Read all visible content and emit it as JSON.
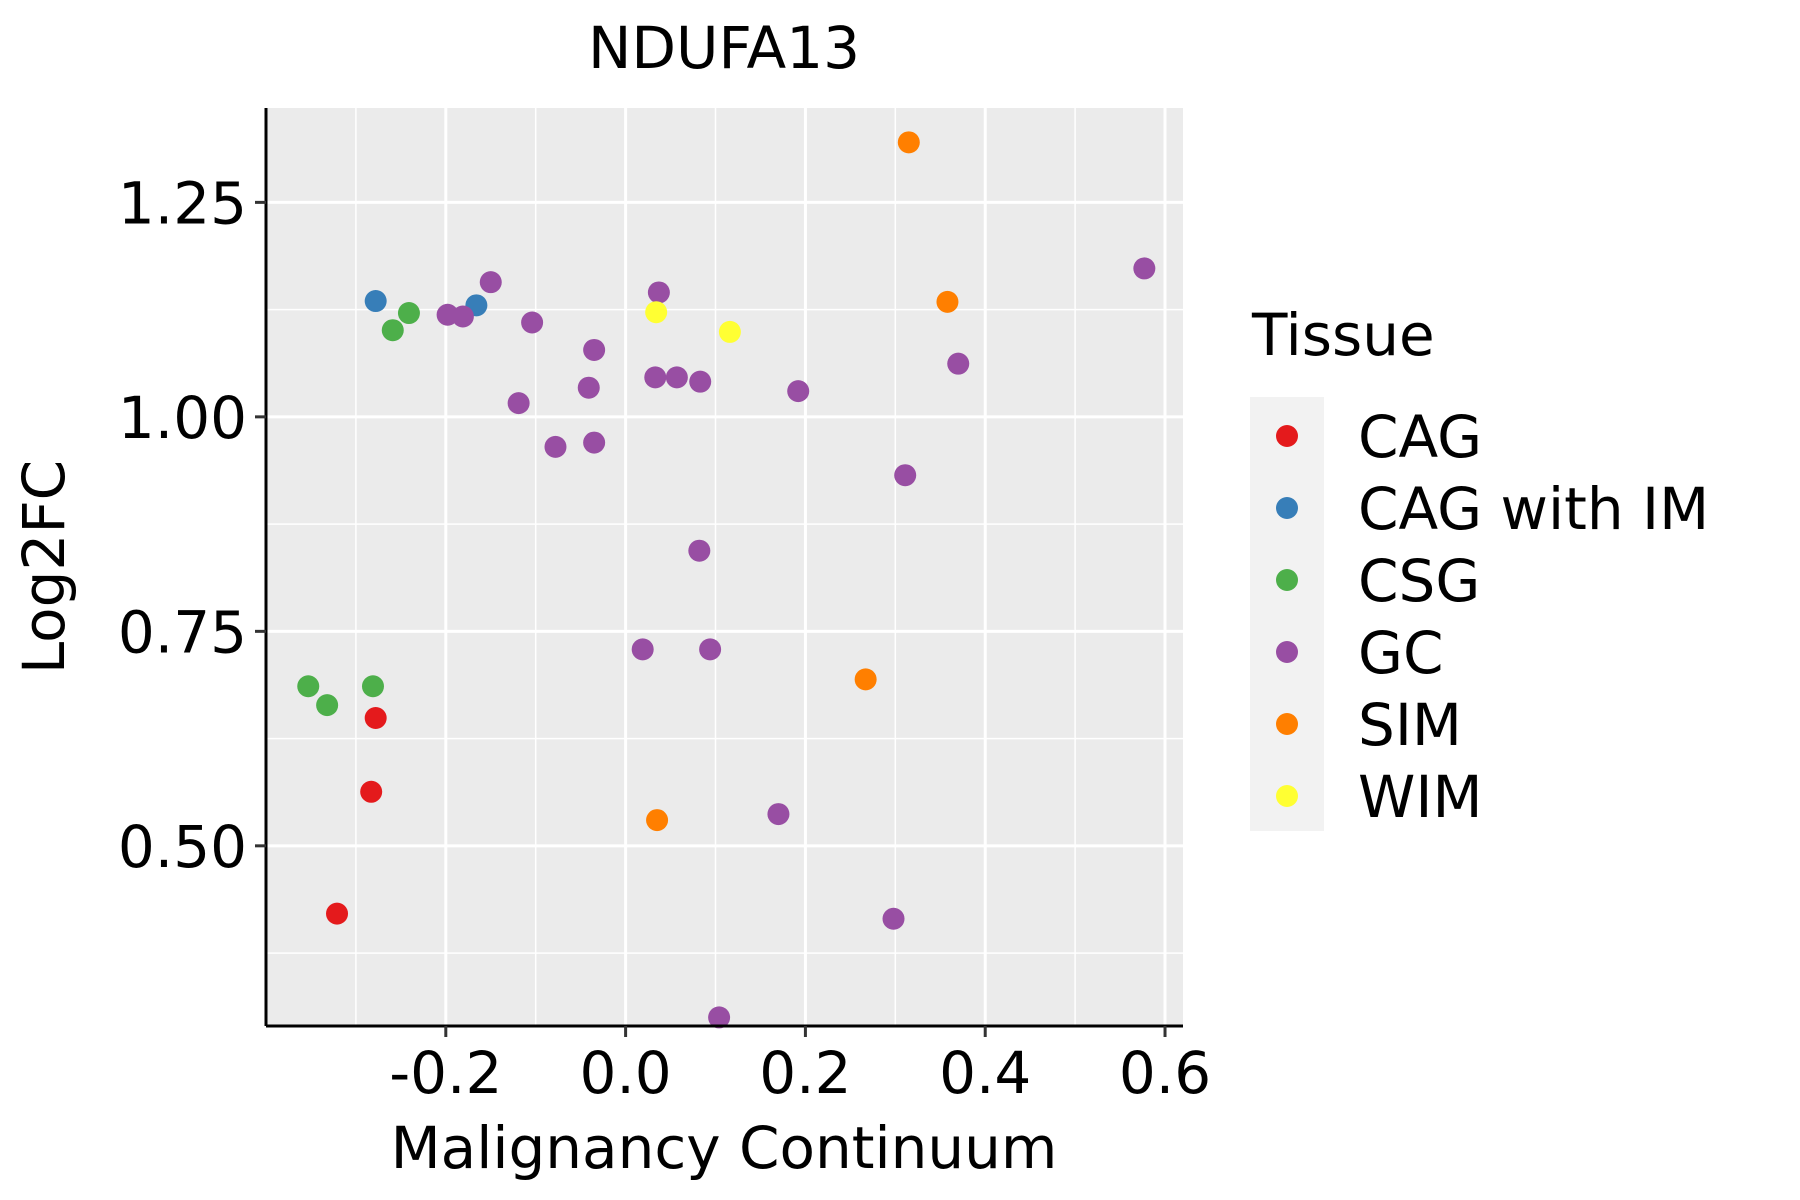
{
  "chart_data": {
    "type": "scatter",
    "title": "NDUFA13",
    "xlabel": "Malignancy Continuum",
    "ylabel": "Log2FC",
    "xlim": [
      -0.4,
      0.62
    ],
    "ylim": [
      0.29,
      1.36
    ],
    "x_ticks": [
      -0.2,
      0.0,
      0.2,
      0.4,
      0.6
    ],
    "x_tick_labels": [
      "-0.2",
      "0.0",
      "0.2",
      "0.4",
      "0.6"
    ],
    "y_ticks": [
      0.5,
      0.75,
      1.0,
      1.25
    ],
    "y_tick_labels": [
      "0.50",
      "0.75",
      "1.00",
      "1.25"
    ],
    "grid": true,
    "legend": {
      "title": "Tissue",
      "position": "right",
      "entries": [
        "CAG",
        "CAG with IM",
        "CSG",
        "GC",
        "SIM",
        "WIM"
      ]
    },
    "colors": {
      "CAG": "#E41A1C",
      "CAG with IM": "#377EB8",
      "CSG": "#4DAF4A",
      "GC": "#984EA3",
      "SIM": "#FF7F00",
      "WIM": "#FFFF33"
    },
    "series": [
      {
        "name": "CAG",
        "points": [
          [
            -0.278,
            0.649
          ],
          [
            -0.283,
            0.563
          ],
          [
            -0.321,
            0.421
          ]
        ]
      },
      {
        "name": "CAG with IM",
        "points": [
          [
            -0.278,
            1.135
          ],
          [
            -0.166,
            1.13
          ]
        ]
      },
      {
        "name": "CSG",
        "points": [
          [
            -0.241,
            1.121
          ],
          [
            -0.259,
            1.101
          ],
          [
            -0.353,
            0.686
          ],
          [
            -0.332,
            0.664
          ],
          [
            -0.281,
            0.686
          ]
        ]
      },
      {
        "name": "GC",
        "points": [
          [
            -0.15,
            1.157
          ],
          [
            -0.198,
            1.119
          ],
          [
            -0.181,
            1.117
          ],
          [
            -0.104,
            1.11
          ],
          [
            -0.119,
            1.016
          ],
          [
            -0.078,
            0.965
          ],
          [
            -0.035,
            1.078
          ],
          [
            -0.041,
            1.034
          ],
          [
            -0.035,
            0.97
          ],
          [
            0.037,
            1.145
          ],
          [
            0.033,
            1.046
          ],
          [
            0.057,
            1.046
          ],
          [
            0.083,
            1.041
          ],
          [
            0.192,
            1.03
          ],
          [
            0.082,
            0.844
          ],
          [
            0.019,
            0.729
          ],
          [
            0.094,
            0.729
          ],
          [
            0.17,
            0.537
          ],
          [
            0.104,
            0.3
          ],
          [
            0.298,
            0.415
          ],
          [
            0.311,
            0.932
          ],
          [
            0.37,
            1.062
          ],
          [
            0.577,
            1.173
          ]
        ]
      },
      {
        "name": "SIM",
        "points": [
          [
            0.315,
            1.32
          ],
          [
            0.358,
            1.134
          ],
          [
            0.267,
            0.694
          ],
          [
            0.035,
            0.53
          ]
        ]
      },
      {
        "name": "WIM",
        "points": [
          [
            0.034,
            1.122
          ],
          [
            0.116,
            1.099
          ]
        ]
      }
    ]
  }
}
